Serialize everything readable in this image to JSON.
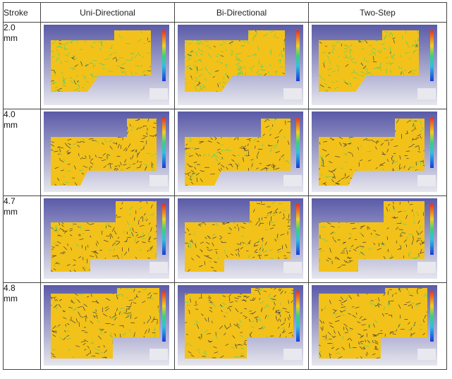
{
  "header": {
    "stroke_col": "Stroke",
    "col1": "Uni-Directional",
    "col2": "Bi-Directional",
    "col3": "Two-Step"
  },
  "rows": [
    {
      "value": "2.0",
      "unit": "mm",
      "stage": 0
    },
    {
      "value": "4.0",
      "unit": "mm",
      "stage": 1
    },
    {
      "value": "4.7",
      "unit": "mm",
      "stage": 2
    },
    {
      "value": "4.8",
      "unit": "mm",
      "stage": 3
    }
  ],
  "colors": {
    "background_top": "#5a5aa8",
    "background_bottom": "#e6e6ee",
    "material": "#f2c21a",
    "arrow_dark": "#2a2a40",
    "arrow_green": "#39d27a",
    "legend_high": "#e83020",
    "legend_low": "#1a3ad8"
  }
}
